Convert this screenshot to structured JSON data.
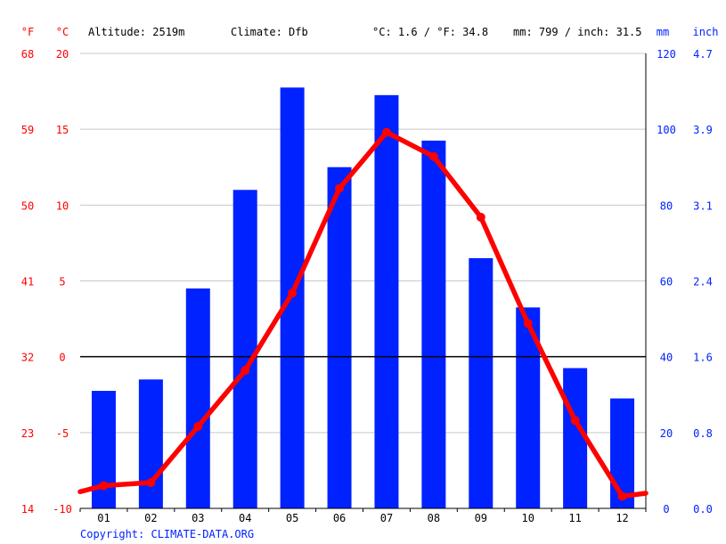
{
  "header": {
    "unit_f": "°F",
    "unit_c": "°C",
    "altitude": "Altitude: 2519m",
    "climate": "Climate: Dfb",
    "temp_avg": "°C: 1.6 / °F: 34.8",
    "precip_total": "mm: 799 / inch: 31.5",
    "unit_mm": "mm",
    "unit_inch": "inch"
  },
  "footer": {
    "copyright": "Copyright: CLIMATE-DATA.ORG"
  },
  "colors": {
    "temperature": "#ff0000",
    "precipitation": "#0022ff",
    "grid": "#c8c8c8",
    "zero_line": "#000000",
    "axis_text_left": "#ff0000",
    "axis_text_right": "#0022ff",
    "text": "#000000"
  },
  "chart_data": {
    "type": "bar+line",
    "categories": [
      "01",
      "02",
      "03",
      "04",
      "05",
      "06",
      "07",
      "08",
      "09",
      "10",
      "11",
      "12"
    ],
    "series": [
      {
        "name": "Precipitation",
        "unit": "mm",
        "type": "bar",
        "values": [
          31,
          34,
          58,
          84,
          111,
          90,
          109,
          97,
          66,
          53,
          37,
          29
        ]
      },
      {
        "name": "Temperature",
        "unit": "°C",
        "type": "line",
        "values": [
          -8.5,
          -8.3,
          -4.6,
          -0.9,
          4.2,
          11.1,
          14.8,
          13.2,
          9.2,
          2.2,
          -4.2,
          -9.2
        ],
        "edge_values": [
          -8.9,
          -9.0
        ]
      }
    ],
    "y_left_c": {
      "ylim": [
        -10,
        20
      ],
      "ticks": [
        "-10",
        "-5",
        "0",
        "5",
        "10",
        "15",
        "20"
      ]
    },
    "y_left_f": {
      "ticks": [
        "14",
        "23",
        "32",
        "41",
        "50",
        "59",
        "68"
      ]
    },
    "y_right_mm": {
      "ylim": [
        0,
        120
      ],
      "ticks": [
        "0",
        "20",
        "40",
        "60",
        "80",
        "100",
        "120"
      ]
    },
    "y_right_in": {
      "ticks": [
        "0.0",
        "0.8",
        "1.6",
        "2.4",
        "3.1",
        "3.9",
        "4.7"
      ]
    },
    "grid": true
  }
}
